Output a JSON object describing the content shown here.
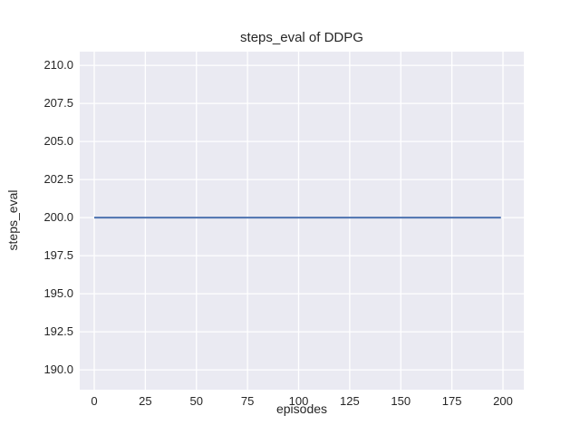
{
  "chart_data": {
    "type": "line",
    "title": "steps_eval of DDPG",
    "xlabel": "episodes",
    "ylabel": "steps_eval",
    "xlim": [
      -7.1,
      210.2
    ],
    "ylim": [
      188.7,
      210.9
    ],
    "xticks": {
      "values": [
        0,
        25,
        50,
        75,
        100,
        125,
        150,
        175,
        200
      ],
      "labels": [
        "0",
        "25",
        "50",
        "75",
        "100",
        "125",
        "150",
        "175",
        "200"
      ]
    },
    "yticks": {
      "values": [
        190,
        192.5,
        195,
        197.5,
        200,
        202.5,
        205,
        207.5,
        210
      ],
      "labels": [
        "190.0",
        "192.5",
        "195.0",
        "197.5",
        "200.0",
        "202.5",
        "205.0",
        "207.5",
        "210.0"
      ]
    },
    "grid": true,
    "legend": "none",
    "series": [
      {
        "name": "DDPG",
        "color": "#4c72b0",
        "x": [
          0,
          199
        ],
        "y": [
          200,
          200
        ]
      }
    ],
    "style": {
      "figure_background": "#ffffff",
      "plot_background": "#eaeaf2",
      "grid_color": "#ffffff",
      "text_color": "#262626",
      "line_width": 2,
      "grid_width": 1.3
    }
  }
}
